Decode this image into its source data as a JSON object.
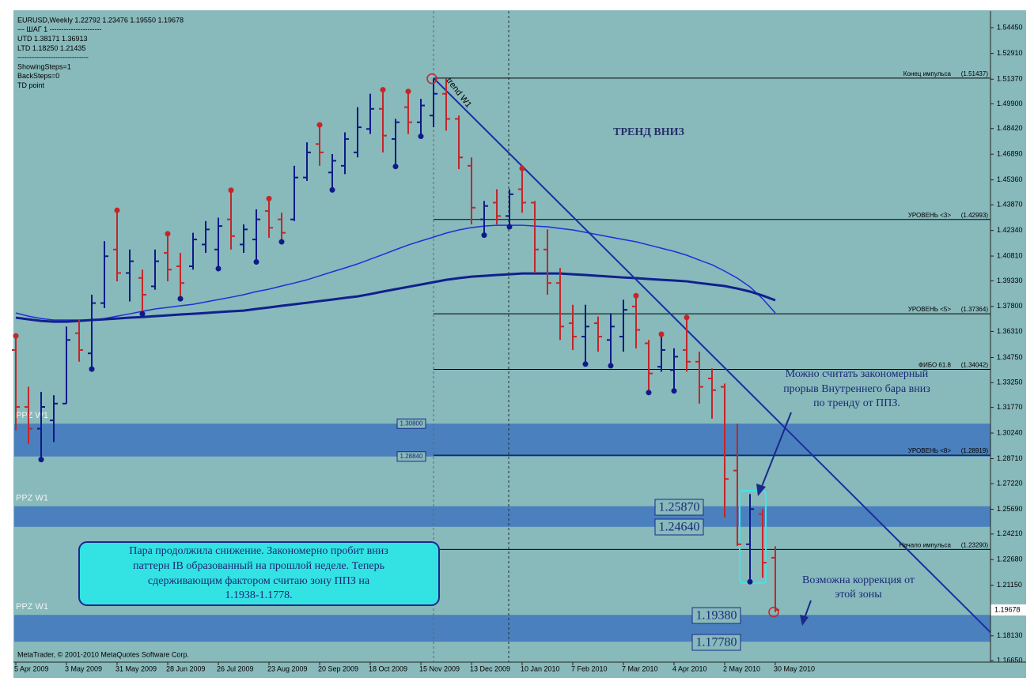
{
  "chart_data": {
    "type": "ohlc",
    "info_lines": [
      "EURUSD,Weekly  1.22792 1.23476 1.19550 1.19678",
      "---    ШАГ 1    ----------------------",
      "UTD 1.38171   1.36913",
      "LTD  1.18250  1.21435",
      "------------------------------",
      "ShowingSteps=1",
      "BackSteps=0",
      "TD point"
    ],
    "copyright": "MetaTrader, © 2001-2010 MetaQuotes Software Corp.",
    "categories": [
      "5 Apr 2009",
      null,
      null,
      null,
      "3 May 2009",
      null,
      null,
      null,
      "31 May 2009",
      null,
      null,
      null,
      "28 Jun 2009",
      null,
      null,
      null,
      "26 Jul 2009",
      null,
      null,
      null,
      "23 Aug 2009",
      null,
      null,
      null,
      "20 Sep 2009",
      null,
      null,
      null,
      "18 Oct 2009",
      null,
      null,
      null,
      "15 Nov 2009",
      null,
      null,
      null,
      "13 Dec 2009",
      null,
      null,
      null,
      "10 Jan 2010",
      null,
      null,
      null,
      "7 Feb 2010",
      null,
      null,
      null,
      "7 Mar 2010",
      null,
      null,
      null,
      "4 Apr 2010",
      null,
      null,
      null,
      "2 May 2010",
      null,
      null,
      null,
      "30 May 2010"
    ],
    "open": [
      1.352,
      1.318,
      1.305,
      1.31,
      1.32,
      1.362,
      1.35,
      1.38,
      1.412,
      1.398,
      1.395,
      1.39,
      1.41,
      1.402,
      1.402,
      1.415,
      1.412,
      1.43,
      1.415,
      1.418,
      1.435,
      1.43,
      1.43,
      1.455,
      1.475,
      1.458,
      1.462,
      1.47,
      1.484,
      1.496,
      1.478,
      1.497,
      1.488,
      1.492,
      1.505,
      1.49,
      1.462,
      1.43,
      1.44,
      1.432,
      1.448,
      1.44,
      1.412,
      1.392,
      1.368,
      1.36,
      1.368,
      1.358,
      1.36,
      1.378,
      1.356,
      1.342,
      1.34,
      1.352,
      1.345,
      1.335,
      1.33,
      1.28,
      1.236,
      1.254,
      1.22792
    ],
    "high": [
      1.359,
      1.33,
      1.327,
      1.325,
      1.366,
      1.37,
      1.385,
      1.417,
      1.434,
      1.412,
      1.4,
      1.412,
      1.42,
      1.41,
      1.422,
      1.429,
      1.431,
      1.446,
      1.427,
      1.436,
      1.441,
      1.434,
      1.462,
      1.476,
      1.485,
      1.469,
      1.482,
      1.497,
      1.505,
      1.506,
      1.49,
      1.505,
      1.502,
      1.514,
      1.514,
      1.492,
      1.467,
      1.441,
      1.448,
      1.448,
      1.459,
      1.441,
      1.424,
      1.401,
      1.379,
      1.379,
      1.372,
      1.374,
      1.382,
      1.383,
      1.358,
      1.36,
      1.353,
      1.37,
      1.351,
      1.341,
      1.332,
      1.308,
      1.266,
      1.257,
      1.23476
    ],
    "low": [
      1.304,
      1.296,
      1.288,
      1.297,
      1.32,
      1.345,
      1.342,
      1.377,
      1.393,
      1.381,
      1.375,
      1.388,
      1.393,
      1.384,
      1.4,
      1.41,
      1.402,
      1.412,
      1.41,
      1.406,
      1.419,
      1.418,
      1.429,
      1.453,
      1.462,
      1.449,
      1.457,
      1.467,
      1.481,
      1.47,
      1.463,
      1.481,
      1.481,
      1.485,
      1.483,
      1.46,
      1.427,
      1.422,
      1.427,
      1.427,
      1.434,
      1.398,
      1.385,
      1.358,
      1.352,
      1.345,
      1.351,
      1.344,
      1.351,
      1.353,
      1.328,
      1.339,
      1.329,
      1.339,
      1.32,
      1.311,
      1.252,
      1.235,
      1.215,
      1.216,
      1.1955
    ],
    "close": [
      1.318,
      1.305,
      1.318,
      1.32,
      1.358,
      1.352,
      1.38,
      1.408,
      1.398,
      1.405,
      1.385,
      1.405,
      1.4,
      1.392,
      1.418,
      1.424,
      1.426,
      1.42,
      1.424,
      1.43,
      1.425,
      1.422,
      1.455,
      1.47,
      1.47,
      1.465,
      1.478,
      1.485,
      1.496,
      1.48,
      1.488,
      1.488,
      1.498,
      1.505,
      1.49,
      1.467,
      1.437,
      1.438,
      1.432,
      1.445,
      1.44,
      1.412,
      1.392,
      1.366,
      1.36,
      1.366,
      1.36,
      1.366,
      1.376,
      1.364,
      1.338,
      1.352,
      1.348,
      1.345,
      1.33,
      1.328,
      1.275,
      1.236,
      1.257,
      1.225,
      1.19678
    ],
    "up_color": "#0e1a88",
    "down_color": "#c4262a",
    "fractal_high": [
      1.359,
      null,
      null,
      null,
      null,
      null,
      null,
      null,
      1.434,
      null,
      null,
      null,
      1.42,
      null,
      null,
      null,
      null,
      1.446,
      null,
      null,
      1.441,
      null,
      null,
      null,
      1.485,
      null,
      null,
      null,
      null,
      1.506,
      null,
      1.505,
      null,
      null,
      null,
      null,
      null,
      null,
      null,
      null,
      1.459,
      null,
      null,
      null,
      null,
      null,
      null,
      null,
      null,
      1.383,
      null,
      1.36,
      null,
      1.37,
      null,
      null,
      null,
      null,
      null,
      null,
      null
    ],
    "fractal_low": [
      null,
      null,
      1.288,
      null,
      null,
      null,
      1.342,
      null,
      null,
      null,
      1.375,
      null,
      null,
      1.384,
      null,
      null,
      1.402,
      null,
      null,
      1.406,
      null,
      1.418,
      null,
      null,
      null,
      1.449,
      null,
      null,
      null,
      null,
      1.463,
      null,
      1.481,
      null,
      null,
      null,
      null,
      1.422,
      null,
      1.427,
      null,
      null,
      null,
      null,
      null,
      1.345,
      null,
      1.344,
      null,
      null,
      1.328,
      null,
      1.329,
      null,
      null,
      null,
      null,
      null,
      1.215,
      null,
      null
    ],
    "td_points": [
      null,
      null,
      null,
      null,
      null,
      null,
      null,
      null,
      null,
      null,
      null,
      null,
      null,
      null,
      null,
      null,
      null,
      null,
      null,
      null,
      null,
      null,
      null,
      null,
      null,
      null,
      null,
      null,
      null,
      null,
      null,
      null,
      null,
      1.514,
      null,
      null,
      null,
      null,
      null,
      null,
      null,
      null,
      null,
      null,
      null,
      null,
      null,
      null,
      null,
      null,
      null,
      null,
      null,
      null,
      null,
      null,
      null,
      null,
      null,
      null,
      1.1955
    ],
    "series": [
      {
        "color": "#1e30d6",
        "width": 1.5,
        "values": [
          1.3741,
          1.3722,
          1.3708,
          1.3699,
          1.3699,
          1.3699,
          1.3699,
          1.3708,
          1.3722,
          1.3736,
          1.3751,
          1.3765,
          1.3774,
          1.3784,
          1.3793,
          1.3807,
          1.3821,
          1.3835,
          1.385,
          1.3869,
          1.3883,
          1.3902,
          1.392,
          1.3939,
          1.3963,
          1.3987,
          1.401,
          1.4034,
          1.4062,
          1.409,
          1.4119,
          1.4147,
          1.4171,
          1.4194,
          1.4218,
          1.4237,
          1.4251,
          1.426,
          1.4265,
          1.4265,
          1.4265,
          1.426,
          1.4256,
          1.4246,
          1.4237,
          1.4223,
          1.4208,
          1.4194,
          1.418,
          1.4166,
          1.4147,
          1.4128,
          1.4109,
          1.4086,
          1.4057,
          1.4029,
          1.3991,
          1.3949,
          1.3897,
          1.3826,
          1.3741
        ]
      },
      {
        "color": "#10208e",
        "width": 3,
        "values": [
          1.3713,
          1.3703,
          1.3694,
          1.3689,
          1.3689,
          1.3694,
          1.3699,
          1.3703,
          1.3708,
          1.3713,
          1.3717,
          1.3722,
          1.3727,
          1.3732,
          1.3736,
          1.3741,
          1.3746,
          1.3751,
          1.3755,
          1.3765,
          1.3774,
          1.3784,
          1.3793,
          1.3802,
          1.3812,
          1.3821,
          1.3831,
          1.384,
          1.3854,
          1.3869,
          1.3883,
          1.3897,
          1.3911,
          1.3925,
          1.3939,
          1.3949,
          1.3958,
          1.3963,
          1.3968,
          1.3972,
          1.3977,
          1.3977,
          1.3977,
          1.3977,
          1.3972,
          1.3968,
          1.3963,
          1.3958,
          1.3953,
          1.3949,
          1.3944,
          1.3939,
          1.3935,
          1.393,
          1.392,
          1.3911,
          1.3902,
          1.3887,
          1.3869,
          1.3845,
          1.3817
        ]
      }
    ],
    "ylim": [
      1.1656,
      1.5544
    ],
    "yticks": [
      {
        "value": 1.5445,
        "label": "1.54450"
      },
      {
        "value": 1.5291,
        "label": "1.52910"
      },
      {
        "value": 1.5137,
        "label": "1.51370"
      },
      {
        "value": 1.499,
        "label": "1.49900"
      },
      {
        "value": 1.4842,
        "label": "1.48420"
      },
      {
        "value": 1.4689,
        "label": "1.46890"
      },
      {
        "value": 1.4536,
        "label": "1.45360"
      },
      {
        "value": 1.4387,
        "label": "1.43870"
      },
      {
        "value": 1.4234,
        "label": "1.42340"
      },
      {
        "value": 1.4081,
        "label": "1.40810"
      },
      {
        "value": 1.3933,
        "label": "1.39330"
      },
      {
        "value": 1.378,
        "label": "1.37800"
      },
      {
        "value": 1.3631,
        "label": "1.36310"
      },
      {
        "value": 1.3475,
        "label": "1.34750"
      },
      {
        "value": 1.3325,
        "label": "1.33250"
      },
      {
        "value": 1.3177,
        "label": "1.31770"
      },
      {
        "value": 1.3024,
        "label": "1.30240"
      },
      {
        "value": 1.2871,
        "label": "1.28710"
      },
      {
        "value": 1.2722,
        "label": "1.27220"
      },
      {
        "value": 1.2569,
        "label": "1.25690"
      },
      {
        "value": 1.2421,
        "label": "1.24210"
      },
      {
        "value": 1.2268,
        "label": "1.22680"
      },
      {
        "value": 1.2115,
        "label": "1.21150"
      },
      {
        "value": 1.1813,
        "label": "1.18130"
      },
      {
        "value": 1.1665,
        "label": "1.16650"
      }
    ],
    "current_price": {
      "value": 1.19678,
      "label": "1.19678"
    },
    "level_color": "#000000",
    "levels": [
      {
        "label": "Конец импульса",
        "value": 1.51437,
        "value_label": "(1.51437)"
      },
      {
        "label": "УРОВЕНЬ <3>",
        "value": 1.42993,
        "value_label": "(1.42993)"
      },
      {
        "label": "УРОВЕНЬ <5>",
        "value": 1.37364,
        "value_label": "(1.37364)"
      },
      {
        "label": "ФИБО 61.8",
        "value": 1.34042,
        "value_label": "(1.34042)"
      },
      {
        "label": "УРОВЕНЬ <8>",
        "value": 1.28919,
        "value_label": "(1.28919)"
      },
      {
        "label": "Начало импульса",
        "value": 1.2329,
        "value_label": "(1.23290)"
      }
    ],
    "zone_color": "#4a80bd",
    "zones": [
      {
        "label": "PPZ W1",
        "top": 1.308,
        "bottom": 1.2884,
        "top_label": "1.30800",
        "bottom_label": "1.28840"
      },
      {
        "label": "PPZ W1",
        "top": 1.2587,
        "bottom": 1.2464,
        "top_label": "1.25870",
        "bottom_label": "1.24640"
      },
      {
        "label": "PPZ W1",
        "top": 1.1938,
        "bottom": 1.1778,
        "top_label": "1.19380",
        "bottom_label": "1.17780"
      }
    ],
    "trend_line": {
      "label": "trend W1",
      "color": "#1a2ea4",
      "points": [
        [
          33,
          1.5144
        ],
        [
          77,
          1.1834
        ]
      ]
    },
    "annotations": {
      "trend": "ТРЕНД ВНИЗ",
      "note": [
        "Можно считать закономерный",
        "прорыв Внутреннего бара вниз",
        "по тренду от ППЗ."
      ],
      "box": [
        "Пара продолжила снижение. Закономерно пробит вниз",
        "паттерн IB образованный на прошлой неделе. Теперь",
        "сдерживающим фактором считаю зону ППЗ на",
        "1.1938-1.1778."
      ],
      "correction": [
        "Возможна коррекция от",
        "этой зоны"
      ]
    }
  }
}
